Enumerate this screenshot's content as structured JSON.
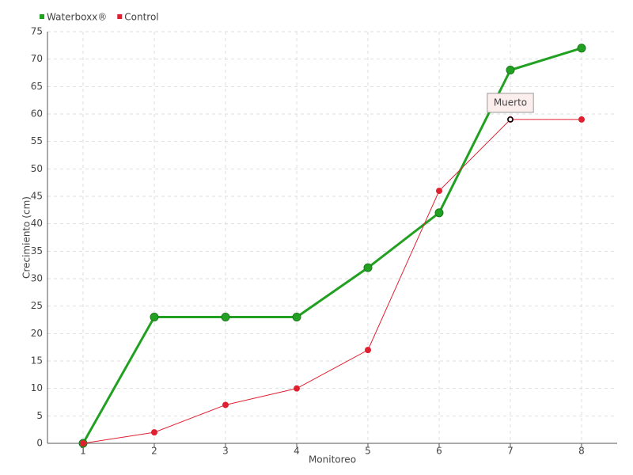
{
  "chart_data": {
    "type": "line",
    "x": [
      1,
      2,
      3,
      4,
      5,
      6,
      7,
      8
    ],
    "xlim": [
      0.5,
      8.5
    ],
    "xticks": [
      1,
      2,
      3,
      4,
      5,
      6,
      7,
      8
    ],
    "ylim": [
      0,
      75
    ],
    "yticks": [
      0,
      5,
      10,
      15,
      20,
      25,
      30,
      35,
      40,
      45,
      50,
      55,
      60,
      65,
      70,
      75
    ],
    "xlabel": "Monitoreo",
    "ylabel": "Crecimiento (cm)",
    "grid": true,
    "legend": "top-left",
    "series": [
      {
        "name": "Waterboxx®",
        "color": "#22a022",
        "values": [
          0,
          23,
          23,
          23,
          32,
          42,
          68,
          72
        ]
      },
      {
        "name": "Control",
        "color": "#e02030",
        "values": [
          0,
          2,
          7,
          10,
          17,
          46,
          59,
          59
        ]
      }
    ],
    "annotations": [
      {
        "text": "Muerto",
        "x": 7,
        "y": 59
      }
    ]
  }
}
